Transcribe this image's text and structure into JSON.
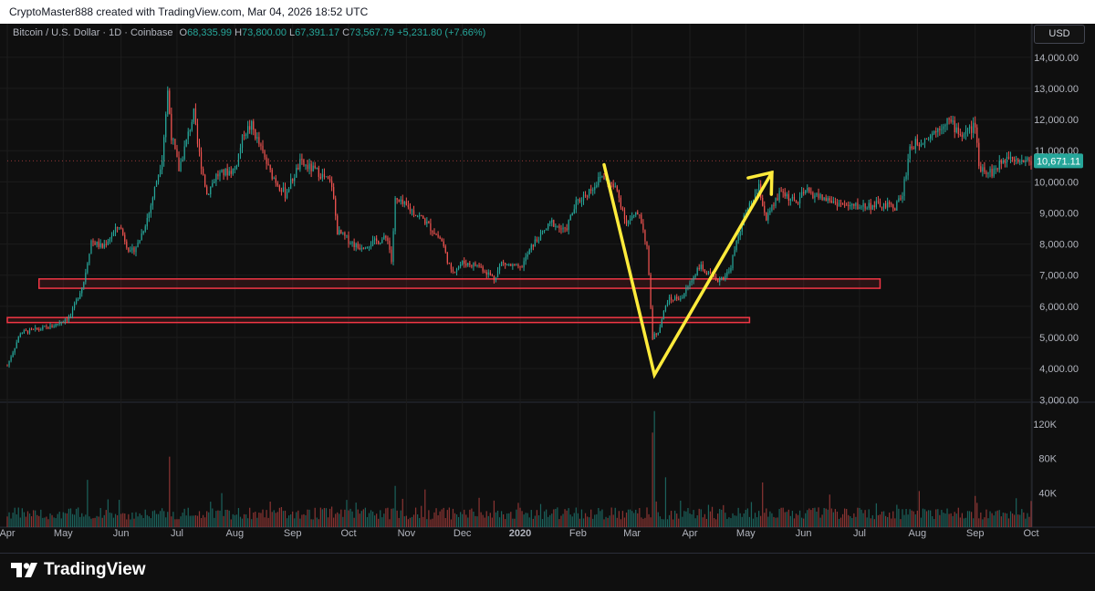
{
  "banner": {
    "text": "CryptoMaster888 created with TradingView.com, Mar 04, 2026 18:52 UTC"
  },
  "symbol": {
    "name": "Bitcoin / U.S. Dollar · 1D · Coinbase",
    "o_label": "O",
    "o": "68,335.99",
    "h_label": "H",
    "h": "73,800.00",
    "l_label": "L",
    "l": "67,391.17",
    "c_label": "C",
    "c": "73,567.79",
    "change": "+5,231.80 (+7.66%)"
  },
  "currency": "USD",
  "logo": {
    "text": "TradingView"
  },
  "colors": {
    "up": "#26a69a",
    "down": "#ef5350",
    "annotation": "#ffeb3b",
    "zone": "#f23645",
    "background": "#0f0f0f",
    "grid": "#1c1c1c"
  },
  "chart_data": {
    "type": "candlestick",
    "title": "Bitcoin / U.S. Dollar · 1D · Coinbase",
    "y_axis": {
      "ticks": [
        "14,000.00",
        "13,000.00",
        "12,000.00",
        "11,000.00",
        "10,000.00",
        "9,000.00",
        "8,000.00",
        "7,000.00",
        "6,000.00",
        "5,000.00",
        "4,000.00",
        "3,000.00"
      ],
      "values": [
        14000,
        13000,
        12000,
        11000,
        10000,
        9000,
        8000,
        7000,
        6000,
        5000,
        4000,
        3000
      ],
      "range": [
        2950,
        14550
      ]
    },
    "x_axis": {
      "ticks": [
        "Apr",
        "May",
        "Jun",
        "Jul",
        "Aug",
        "Sep",
        "Oct",
        "Nov",
        "Dec",
        "2020",
        "Feb",
        "Mar",
        "Apr",
        "May",
        "Jun",
        "Jul",
        "Aug",
        "Sep",
        "Oct"
      ],
      "dates": [
        "2019-04-01",
        "2019-05-01",
        "2019-06-01",
        "2019-07-01",
        "2019-08-01",
        "2019-09-01",
        "2019-10-01",
        "2019-11-01",
        "2019-12-01",
        "2020-01-01",
        "2020-02-01",
        "2020-03-01",
        "2020-04-01",
        "2020-05-01",
        "2020-06-01",
        "2020-07-01",
        "2020-08-01",
        "2020-09-01",
        "2020-10-01"
      ],
      "range": [
        "2019-04-01",
        "2020-10-01"
      ]
    },
    "last_price": "10,671.11",
    "price_path": [
      [
        "2019-04-01",
        4100
      ],
      [
        "2019-04-08",
        5150
      ],
      [
        "2019-04-25",
        5350
      ],
      [
        "2019-05-05",
        5700
      ],
      [
        "2019-05-12",
        6800
      ],
      [
        "2019-05-16",
        8100
      ],
      [
        "2019-05-22",
        7900
      ],
      [
        "2019-05-31",
        8600
      ],
      [
        "2019-06-06",
        7700
      ],
      [
        "2019-06-10",
        8000
      ],
      [
        "2019-06-16",
        9000
      ],
      [
        "2019-06-23",
        10800
      ],
      [
        "2019-06-26",
        12900
      ],
      [
        "2019-06-28",
        11500
      ],
      [
        "2019-07-02",
        10400
      ],
      [
        "2019-07-10",
        12200
      ],
      [
        "2019-07-12",
        11200
      ],
      [
        "2019-07-17",
        9600
      ],
      [
        "2019-07-22",
        10200
      ],
      [
        "2019-08-01",
        10400
      ],
      [
        "2019-08-06",
        11600
      ],
      [
        "2019-08-10",
        11800
      ],
      [
        "2019-08-20",
        10300
      ],
      [
        "2019-08-28",
        9600
      ],
      [
        "2019-09-05",
        10600
      ],
      [
        "2019-09-15",
        10300
      ],
      [
        "2019-09-22",
        9900
      ],
      [
        "2019-09-25",
        8400
      ],
      [
        "2019-10-06",
        7900
      ],
      [
        "2019-10-22",
        8200
      ],
      [
        "2019-10-24",
        7450
      ],
      [
        "2019-10-26",
        9400
      ],
      [
        "2019-11-01",
        9200
      ],
      [
        "2019-11-10",
        8800
      ],
      [
        "2019-11-20",
        8100
      ],
      [
        "2019-11-25",
        7100
      ],
      [
        "2019-12-01",
        7400
      ],
      [
        "2019-12-10",
        7300
      ],
      [
        "2019-12-18",
        6900
      ],
      [
        "2019-12-22",
        7400
      ],
      [
        "2020-01-01",
        7200
      ],
      [
        "2020-01-08",
        8000
      ],
      [
        "2020-01-18",
        8700
      ],
      [
        "2020-01-25",
        8400
      ],
      [
        "2020-01-31",
        9300
      ],
      [
        "2020-02-10",
        9900
      ],
      [
        "2020-02-14",
        10200
      ],
      [
        "2020-02-22",
        9700
      ],
      [
        "2020-02-27",
        8700
      ],
      [
        "2020-03-05",
        9000
      ],
      [
        "2020-03-09",
        7900
      ],
      [
        "2020-03-12",
        5000
      ],
      [
        "2020-03-15",
        5200
      ],
      [
        "2020-03-20",
        6200
      ],
      [
        "2020-03-28",
        6300
      ],
      [
        "2020-04-06",
        7300
      ],
      [
        "2020-04-15",
        6800
      ],
      [
        "2020-04-22",
        7100
      ],
      [
        "2020-04-29",
        8700
      ],
      [
        "2020-05-08",
        9800
      ],
      [
        "2020-05-12",
        8800
      ],
      [
        "2020-05-20",
        9700
      ],
      [
        "2020-05-28",
        9300
      ],
      [
        "2020-06-02",
        9700
      ],
      [
        "2020-06-10",
        9500
      ],
      [
        "2020-06-25",
        9200
      ],
      [
        "2020-07-10",
        9250
      ],
      [
        "2020-07-20",
        9200
      ],
      [
        "2020-07-24",
        9600
      ],
      [
        "2020-07-28",
        11100
      ],
      [
        "2020-08-10",
        11600
      ],
      [
        "2020-08-17",
        12000
      ],
      [
        "2020-08-25",
        11500
      ],
      [
        "2020-09-01",
        11800
      ],
      [
        "2020-09-03",
        10500
      ],
      [
        "2020-09-10",
        10300
      ],
      [
        "2020-09-20",
        10900
      ],
      [
        "2020-09-25",
        10700
      ],
      [
        "2020-10-01",
        10671
      ]
    ],
    "volume_axis": {
      "ticks": [
        "120K",
        "80K",
        "40K"
      ],
      "values": [
        120000,
        80000,
        40000
      ],
      "range": [
        0,
        140000
      ]
    },
    "volume_spikes": [
      [
        "2019-06-27",
        82000
      ],
      [
        "2019-05-14",
        55000
      ],
      [
        "2019-10-26",
        48000
      ],
      [
        "2020-03-12",
        110000
      ],
      [
        "2020-03-13",
        135000
      ],
      [
        "2020-03-19",
        58000
      ],
      [
        "2020-05-10",
        52000
      ],
      [
        "2020-08-02",
        42000
      ]
    ],
    "zones": [
      {
        "from": "2019-04-18",
        "to": "2020-07-12",
        "low": 6580,
        "high": 6880
      },
      {
        "from": "2019-04-01",
        "to": "2020-05-03",
        "low": 5480,
        "high": 5640
      }
    ],
    "annotation_path": [
      [
        "2020-02-15",
        10550
      ],
      [
        "2020-03-13",
        3800
      ],
      [
        "2020-05-15",
        10300
      ]
    ],
    "annotation_arrow": "end"
  }
}
